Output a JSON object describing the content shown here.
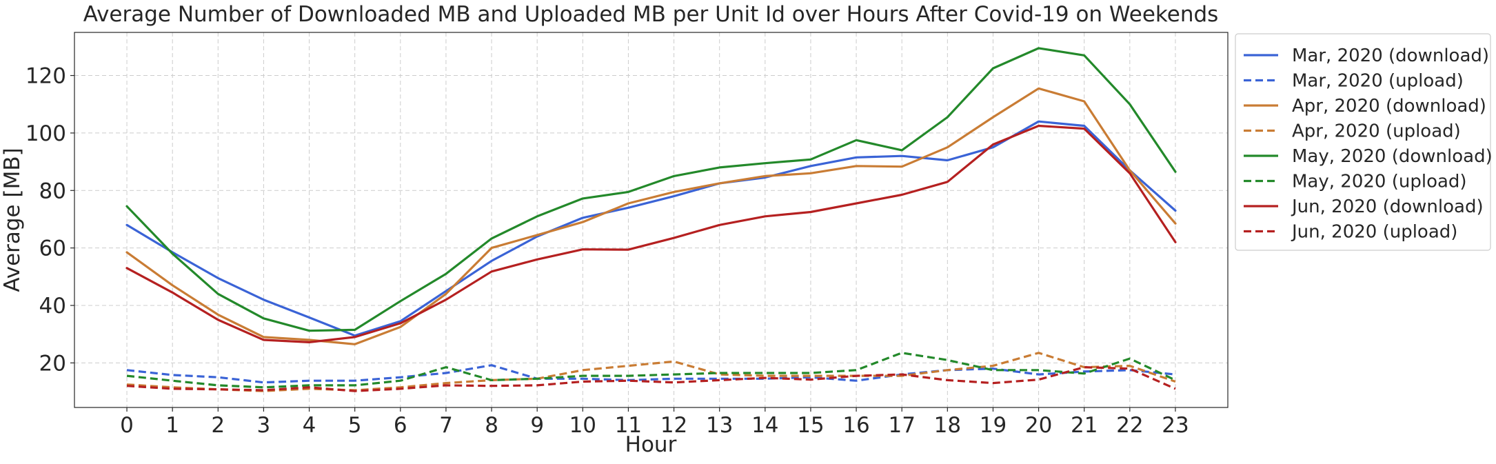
{
  "chart_data": {
    "type": "line",
    "title": "Average Number of Downloaded MB and Uploaded MB per Unit Id over Hours After Covid-19 on Weekends",
    "xlabel": "Hour",
    "ylabel": "Average [MB]",
    "xlim": [
      -1.15,
      24.15
    ],
    "ylim": [
      4.5,
      135
    ],
    "x": [
      0,
      1,
      2,
      3,
      4,
      5,
      6,
      7,
      8,
      9,
      10,
      11,
      12,
      13,
      14,
      15,
      16,
      17,
      18,
      19,
      20,
      21,
      22,
      23
    ],
    "xticks": [
      "0",
      "1",
      "2",
      "3",
      "4",
      "5",
      "6",
      "7",
      "8",
      "9",
      "10",
      "11",
      "12",
      "13",
      "14",
      "15",
      "16",
      "17",
      "18",
      "19",
      "20",
      "21",
      "22",
      "23"
    ],
    "yticks": [
      20,
      40,
      60,
      80,
      100,
      120
    ],
    "grid": true,
    "legend_position": "outside-right",
    "series": [
      {
        "name": "Mar, 2020 (download)",
        "color": "#3a63d6",
        "dash": "solid",
        "values": [
          68,
          58.5,
          49.5,
          42,
          35.8,
          29.5,
          34.5,
          45,
          55.5,
          64,
          70.5,
          74,
          78,
          82.5,
          84.5,
          88.5,
          91.5,
          92,
          90.5,
          95,
          104,
          102.5,
          87,
          73
        ]
      },
      {
        "name": "Mar, 2020 (upload)",
        "color": "#3a63d6",
        "dash": "dashed",
        "values": [
          17.5,
          15.8,
          15,
          13.2,
          13.8,
          13.8,
          15,
          16.5,
          19.2,
          14.5,
          14.5,
          14,
          14.5,
          14.5,
          14.5,
          15,
          13.8,
          16,
          17.5,
          18,
          16,
          17,
          17.5,
          16
        ]
      },
      {
        "name": "Apr, 2020 (download)",
        "color": "#c97c34",
        "dash": "solid",
        "values": [
          58.5,
          47,
          36.8,
          29,
          28,
          26.5,
          32.5,
          44,
          60,
          64.5,
          69,
          75.5,
          79.5,
          82.5,
          85,
          86,
          88.5,
          88.3,
          95,
          105.5,
          115.5,
          111,
          87,
          68.5
        ]
      },
      {
        "name": "Apr, 2020 (upload)",
        "color": "#c97c34",
        "dash": "dashed",
        "values": [
          12.5,
          11.5,
          10.8,
          10.2,
          11,
          10.5,
          11.5,
          13,
          14,
          14.5,
          17.5,
          19,
          20.5,
          16,
          15.5,
          15.5,
          15.5,
          15.5,
          17.5,
          19,
          23.5,
          18.5,
          19,
          13.5
        ]
      },
      {
        "name": "May, 2020 (download)",
        "color": "#23892a",
        "dash": "solid",
        "values": [
          74.5,
          58,
          44,
          35.5,
          31.2,
          31.5,
          41.5,
          51,
          63.3,
          71,
          77.2,
          79.5,
          85,
          88,
          89.5,
          90.8,
          97.5,
          94,
          105.5,
          122.5,
          129.5,
          127,
          110,
          86.5
        ]
      },
      {
        "name": "May, 2020 (upload)",
        "color": "#23892a",
        "dash": "dashed",
        "values": [
          15.5,
          13.8,
          12.2,
          11.5,
          12.2,
          12.2,
          13.8,
          18.5,
          14,
          14.5,
          15.5,
          15.5,
          16,
          16.5,
          16.5,
          16.5,
          17.5,
          23.5,
          21,
          17.5,
          17.5,
          16.3,
          21.5,
          14
        ]
      },
      {
        "name": "Jun, 2020 (download)",
        "color": "#b52020",
        "dash": "solid",
        "values": [
          53,
          44.5,
          35,
          28,
          27.2,
          29,
          33.8,
          42,
          51.8,
          56,
          59.5,
          59.4,
          63.5,
          68,
          71,
          72.5,
          75.5,
          78.5,
          83,
          96,
          102.5,
          101.5,
          86,
          62
        ]
      },
      {
        "name": "Jun, 2020 (upload)",
        "color": "#b52020",
        "dash": "dashed",
        "values": [
          12,
          11,
          10.8,
          10.5,
          11.5,
          10.2,
          11,
          12.2,
          12,
          12.2,
          13.5,
          13.8,
          13.2,
          14,
          14.8,
          14.2,
          15.5,
          16,
          14,
          13,
          14.2,
          18.5,
          18,
          11
        ]
      }
    ]
  }
}
